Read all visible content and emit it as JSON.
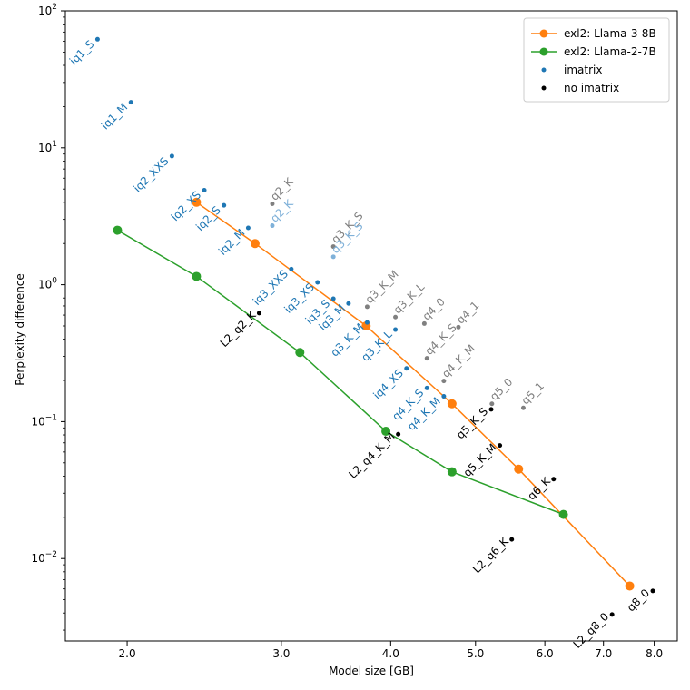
{
  "chart_data": {
    "type": "line",
    "title": "",
    "xlabel": "Model size [GB]",
    "ylabel": "Perplexity difference",
    "xscale": "log",
    "yscale": "log",
    "xlim": [
      1.7,
      8.5
    ],
    "ylim": [
      0.0025,
      100
    ],
    "x_ticks": [
      {
        "value": 2.0,
        "label": "2.0"
      },
      {
        "value": 3.0,
        "label": "3.0"
      },
      {
        "value": 4.0,
        "label": "4.0"
      },
      {
        "value": 5.0,
        "label": "5.0"
      },
      {
        "value": 6.0,
        "label": "6.0"
      },
      {
        "value": 7.0,
        "label": "7.0"
      },
      {
        "value": 8.0,
        "label": "8.0"
      }
    ],
    "y_ticks": [
      {
        "value": 0.01,
        "base": "10",
        "exp": "−2"
      },
      {
        "value": 0.1,
        "base": "10",
        "exp": "−1"
      },
      {
        "value": 1,
        "base": "10",
        "exp": "0"
      },
      {
        "value": 10,
        "base": "10",
        "exp": "1"
      },
      {
        "value": 100,
        "base": "10",
        "exp": "2"
      }
    ],
    "legend": {
      "position": "top-right",
      "entries": [
        "exl2: Llama-3-8B",
        "exl2: Llama-2-7B",
        "imatrix",
        "no imatrix"
      ]
    },
    "colors": {
      "llama3": "#ff7f0e",
      "llama2": "#2ca02c",
      "imatrix": "#1f77b4",
      "no_imatrix": "#000000",
      "gray": "#808080",
      "light_blue": "#7fb1d9"
    },
    "series": [
      {
        "name": "exl2: Llama-3-8B",
        "color_key": "llama3",
        "x": [
          2.4,
          2.8,
          3.75,
          4.7,
          5.6,
          7.5
        ],
        "y": [
          4.0,
          2.0,
          0.5,
          0.135,
          0.045,
          0.0063
        ]
      },
      {
        "name": "exl2: Llama-2-7B",
        "color_key": "llama2",
        "x": [
          1.95,
          2.4,
          3.15,
          3.95,
          4.7,
          6.3
        ],
        "y": [
          2.5,
          1.15,
          0.32,
          0.085,
          0.043,
          0.021
        ]
      }
    ],
    "points": [
      {
        "label": "iq1_S",
        "x": 1.85,
        "y": 62,
        "color_key": "imatrix"
      },
      {
        "label": "iq1_M",
        "x": 2.02,
        "y": 21.5,
        "color_key": "imatrix"
      },
      {
        "label": "iq2_XXS",
        "x": 2.25,
        "y": 8.7,
        "color_key": "imatrix"
      },
      {
        "label": "iq2_XS",
        "x": 2.45,
        "y": 4.9,
        "color_key": "imatrix"
      },
      {
        "label": "iq2_S",
        "x": 2.58,
        "y": 3.8,
        "color_key": "imatrix"
      },
      {
        "label": "iq2_M",
        "x": 2.75,
        "y": 2.6,
        "color_key": "imatrix"
      },
      {
        "label": "iq3_XXS",
        "x": 3.08,
        "y": 1.3,
        "color_key": "imatrix"
      },
      {
        "label": "iq3_XS",
        "x": 3.3,
        "y": 1.04,
        "color_key": "imatrix"
      },
      {
        "label": "iq3_S",
        "x": 3.44,
        "y": 0.79,
        "color_key": "imatrix"
      },
      {
        "label": "iq3_M",
        "x": 3.58,
        "y": 0.73,
        "color_key": "imatrix"
      },
      {
        "label": "q3_K_M",
        "x": 3.76,
        "y": 0.53,
        "color_key": "imatrix"
      },
      {
        "label": "q3_K_L",
        "x": 4.05,
        "y": 0.47,
        "color_key": "imatrix"
      },
      {
        "label": "iq4_XS",
        "x": 4.17,
        "y": 0.245,
        "color_key": "imatrix"
      },
      {
        "label": "q4_K_S",
        "x": 4.4,
        "y": 0.176,
        "color_key": "imatrix"
      },
      {
        "label": "q4_K_M",
        "x": 4.6,
        "y": 0.153,
        "color_key": "imatrix"
      },
      {
        "label": "q2_K",
        "x": 2.93,
        "y": 3.9,
        "color_key": "gray"
      },
      {
        "label": "q2_K",
        "x": 2.93,
        "y": 2.7,
        "color_key": "light_blue"
      },
      {
        "label": "q3_K_S",
        "x": 3.44,
        "y": 1.9,
        "color_key": "gray"
      },
      {
        "label": "q3_K_S",
        "x": 3.44,
        "y": 1.6,
        "color_key": "light_blue"
      },
      {
        "label": "q3_K_M",
        "x": 3.76,
        "y": 0.69,
        "color_key": "gray"
      },
      {
        "label": "q3_K_L",
        "x": 4.05,
        "y": 0.58,
        "color_key": "gray"
      },
      {
        "label": "q4_0",
        "x": 4.37,
        "y": 0.52,
        "color_key": "gray"
      },
      {
        "label": "q4_1",
        "x": 4.78,
        "y": 0.49,
        "color_key": "gray"
      },
      {
        "label": "q4_K_S",
        "x": 4.4,
        "y": 0.29,
        "color_key": "gray"
      },
      {
        "label": "q4_K_M",
        "x": 4.6,
        "y": 0.198,
        "color_key": "gray"
      },
      {
        "label": "q5_0",
        "x": 5.22,
        "y": 0.135,
        "color_key": "gray"
      },
      {
        "label": "q5_1",
        "x": 5.67,
        "y": 0.126,
        "color_key": "gray"
      },
      {
        "label": "L2_q2_K",
        "x": 2.83,
        "y": 0.62,
        "color_key": "no_imatrix"
      },
      {
        "label": "L2_q4_K_M",
        "x": 4.08,
        "y": 0.081,
        "color_key": "no_imatrix"
      },
      {
        "label": "q5_K_S",
        "x": 5.21,
        "y": 0.123,
        "color_key": "no_imatrix"
      },
      {
        "label": "q5_K_M",
        "x": 5.33,
        "y": 0.067,
        "color_key": "no_imatrix"
      },
      {
        "label": "q6_K",
        "x": 6.14,
        "y": 0.038,
        "color_key": "no_imatrix"
      },
      {
        "label": "L2_q6_K",
        "x": 5.5,
        "y": 0.0138,
        "color_key": "no_imatrix"
      },
      {
        "label": "L2_q8_0",
        "x": 7.16,
        "y": 0.0039,
        "color_key": "no_imatrix"
      },
      {
        "label": "q8_0",
        "x": 7.97,
        "y": 0.0058,
        "color_key": "no_imatrix"
      }
    ]
  }
}
